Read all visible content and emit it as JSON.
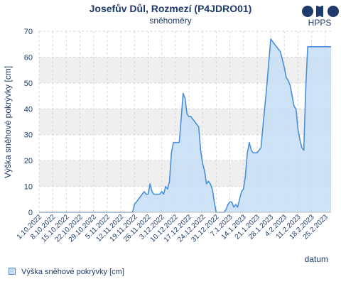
{
  "title": "Josefův Důl, Rozmezí (P4JDRO01)",
  "subtitle": "sněhoměry",
  "logo": {
    "text": "HPPS",
    "icon": "hpps-logo-icon"
  },
  "legend": {
    "label": "Výška sněhové pokrývky [cm]"
  },
  "chart_data": {
    "type": "area",
    "title": "Josefův Důl, Rozmezí (P4JDRO01)",
    "subtitle": "sněhoměry",
    "xlabel": "datum",
    "ylabel": "Výška sněhové pokrývky [cm]",
    "ylim": [
      0,
      70
    ],
    "yticks": [
      0,
      10,
      20,
      30,
      40,
      50,
      60,
      70
    ],
    "xlim": [
      "2022-10-01",
      "2023-02-28"
    ],
    "xticks": [
      "1.10.2022",
      "8.10.2022",
      "15.10.2022",
      "22.10.2022",
      "29.10.2022",
      "5.11.2022",
      "12.11.2022",
      "19.11.2022",
      "26.11.2022",
      "3.12.2022",
      "10.12.2022",
      "17.12.2022",
      "24.12.2022",
      "31.12.2022",
      "7.1.2023",
      "14.1.2023",
      "21.1.2023",
      "28.1.2023",
      "4.2.2023",
      "11.2.2023",
      "18.2.2023",
      "25.2.2023"
    ],
    "grid": true,
    "band_fill": "alternating",
    "colors": {
      "line": "#4a90d9",
      "fill": "#c6def4",
      "band": "#efefef",
      "text": "#1f3b6b"
    },
    "series": [
      {
        "name": "Výška sněhové pokrývky [cm]",
        "x": [
          "2022-10-01",
          "2022-11-18",
          "2022-11-19",
          "2022-11-20",
          "2022-11-21",
          "2022-11-22",
          "2022-11-23",
          "2022-11-24",
          "2022-11-25",
          "2022-11-26",
          "2022-11-27",
          "2022-11-28",
          "2022-11-29",
          "2022-11-30",
          "2022-12-01",
          "2022-12-02",
          "2022-12-03",
          "2022-12-04",
          "2022-12-05",
          "2022-12-06",
          "2022-12-07",
          "2022-12-08",
          "2022-12-09",
          "2022-12-10",
          "2022-12-11",
          "2022-12-12",
          "2022-12-13",
          "2022-12-14",
          "2022-12-15",
          "2022-12-16",
          "2022-12-17",
          "2022-12-18",
          "2022-12-19",
          "2022-12-20",
          "2022-12-21",
          "2022-12-22",
          "2022-12-23",
          "2022-12-24",
          "2022-12-25",
          "2022-12-26",
          "2022-12-27",
          "2022-12-28",
          "2022-12-29",
          "2022-12-30",
          "2022-12-31",
          "2023-01-01",
          "2023-01-02",
          "2023-01-03",
          "2023-01-04",
          "2023-01-05",
          "2023-01-06",
          "2023-01-07",
          "2023-01-08",
          "2023-01-09",
          "2023-01-10",
          "2023-01-11",
          "2023-01-12",
          "2023-01-13",
          "2023-01-14",
          "2023-01-15",
          "2023-01-16",
          "2023-01-17",
          "2023-01-18",
          "2023-01-19",
          "2023-01-20",
          "2023-01-21",
          "2023-01-22",
          "2023-01-23",
          "2023-01-24",
          "2023-01-25",
          "2023-01-26",
          "2023-01-27",
          "2023-01-28",
          "2023-01-29",
          "2023-01-30",
          "2023-01-31",
          "2023-02-01",
          "2023-02-02",
          "2023-02-03",
          "2023-02-04",
          "2023-02-05",
          "2023-02-06",
          "2023-02-07",
          "2023-02-08",
          "2023-02-09",
          "2023-02-10",
          "2023-02-11",
          "2023-02-12",
          "2023-02-13",
          "2023-02-14",
          "2023-02-15",
          "2023-02-16",
          "2023-02-17",
          "2023-02-18",
          "2023-02-19",
          "2023-02-20",
          "2023-02-21",
          "2023-02-22",
          "2023-02-23",
          "2023-02-24",
          "2023-02-25",
          "2023-02-26",
          "2023-02-27",
          "2023-02-28"
        ],
        "values": [
          0,
          0,
          3,
          4,
          5,
          6,
          7,
          8,
          7,
          7,
          11,
          8,
          7,
          7,
          7,
          7,
          8,
          7,
          10,
          9,
          12,
          23,
          27,
          27,
          27,
          27,
          36,
          46,
          44,
          38,
          37,
          37,
          36,
          35,
          34,
          33,
          24,
          19,
          16,
          11,
          12,
          11,
          9,
          4,
          0,
          0,
          0,
          0,
          0,
          1,
          3,
          4,
          4,
          2,
          3,
          2,
          5,
          8,
          9,
          14,
          23,
          27,
          24,
          23,
          23,
          23,
          24,
          25,
          33,
          41,
          49,
          58,
          67,
          66,
          65,
          64,
          63,
          62,
          59,
          56,
          52,
          51,
          49,
          45,
          41,
          40,
          32,
          28,
          25,
          24,
          48,
          64,
          64,
          64,
          64,
          64,
          64,
          64,
          64,
          64,
          64,
          64,
          64,
          64
        ]
      }
    ]
  }
}
